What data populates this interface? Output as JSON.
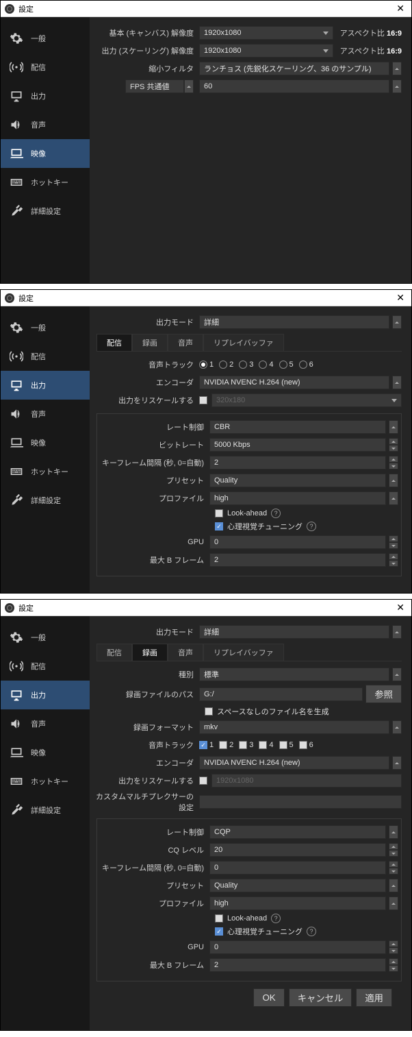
{
  "common": {
    "title": "設定",
    "sidebar": [
      {
        "id": "general",
        "label": "一般"
      },
      {
        "id": "stream",
        "label": "配信"
      },
      {
        "id": "output",
        "label": "出力"
      },
      {
        "id": "audio",
        "label": "音声"
      },
      {
        "id": "video",
        "label": "映像"
      },
      {
        "id": "hotkeys",
        "label": "ホットキー"
      },
      {
        "id": "advanced",
        "label": "詳細設定"
      }
    ],
    "aspect_prefix": "アスペクト比",
    "aspect_value": "16:9"
  },
  "win1": {
    "rows": {
      "base": {
        "label": "基本 (キャンバス) 解像度",
        "value": "1920x1080"
      },
      "output": {
        "label": "出力 (スケーリング) 解像度",
        "value": "1920x1080"
      },
      "filter": {
        "label": "縮小フィルタ",
        "value": "ランチョス (先鋭化スケーリング、36 のサンプル)"
      },
      "fps": {
        "label": "FPS 共通値",
        "value": "60"
      }
    }
  },
  "win2": {
    "output_mode": {
      "label": "出力モード",
      "value": "詳細"
    },
    "tabs": [
      "配信",
      "録画",
      "音声",
      "リプレイバッファ"
    ],
    "active_tab": 0,
    "audio_track": {
      "label": "音声トラック",
      "selected": 1,
      "count": 6
    },
    "encoder": {
      "label": "エンコーダ",
      "value": "NVIDIA NVENC H.264 (new)"
    },
    "rescale": {
      "label": "出力をリスケールする",
      "checked": false,
      "value": "320x180"
    },
    "rate_control": {
      "label": "レート制御",
      "value": "CBR"
    },
    "bitrate": {
      "label": "ビットレート",
      "value": "5000 Kbps"
    },
    "keyframe": {
      "label": "キーフレーム間隔 (秒, 0=自動)",
      "value": "2"
    },
    "preset": {
      "label": "プリセット",
      "value": "Quality"
    },
    "profile": {
      "label": "プロファイル",
      "value": "high"
    },
    "lookahead": {
      "label": "Look-ahead",
      "checked": false
    },
    "psychovisual": {
      "label": "心理視覚チューニング",
      "checked": true
    },
    "gpu": {
      "label": "GPU",
      "value": "0"
    },
    "bframes": {
      "label": "最大 B フレーム",
      "value": "2"
    }
  },
  "win3": {
    "output_mode": {
      "label": "出力モード",
      "value": "詳細"
    },
    "tabs": [
      "配信",
      "録画",
      "音声",
      "リプレイバッファ"
    ],
    "active_tab": 1,
    "type": {
      "label": "種別",
      "value": "標準"
    },
    "path": {
      "label": "録画ファイルのパス",
      "value": "G:/",
      "browse": "参照"
    },
    "no_space": {
      "label": "スペースなしのファイル名を生成",
      "checked": false
    },
    "format": {
      "label": "録画フォーマット",
      "value": "mkv"
    },
    "audio_track": {
      "label": "音声トラック",
      "selected": 1,
      "count": 6
    },
    "encoder": {
      "label": "エンコーダ",
      "value": "NVIDIA NVENC H.264 (new)"
    },
    "rescale": {
      "label": "出力をリスケールする",
      "checked": false,
      "value": "1920x1080"
    },
    "mux": {
      "label": "カスタムマルチプレクサーの設定",
      "value": ""
    },
    "rate_control": {
      "label": "レート制御",
      "value": "CQP"
    },
    "cq": {
      "label": "CQ レベル",
      "value": "20"
    },
    "keyframe": {
      "label": "キーフレーム間隔 (秒, 0=自動)",
      "value": "0"
    },
    "preset": {
      "label": "プリセット",
      "value": "Quality"
    },
    "profile": {
      "label": "プロファイル",
      "value": "high"
    },
    "lookahead": {
      "label": "Look-ahead",
      "checked": false
    },
    "psychovisual": {
      "label": "心理視覚チューニング",
      "checked": true
    },
    "gpu": {
      "label": "GPU",
      "value": "0"
    },
    "bframes": {
      "label": "最大 B フレーム",
      "value": "2"
    },
    "buttons": {
      "ok": "OK",
      "cancel": "キャンセル",
      "apply": "適用"
    }
  }
}
